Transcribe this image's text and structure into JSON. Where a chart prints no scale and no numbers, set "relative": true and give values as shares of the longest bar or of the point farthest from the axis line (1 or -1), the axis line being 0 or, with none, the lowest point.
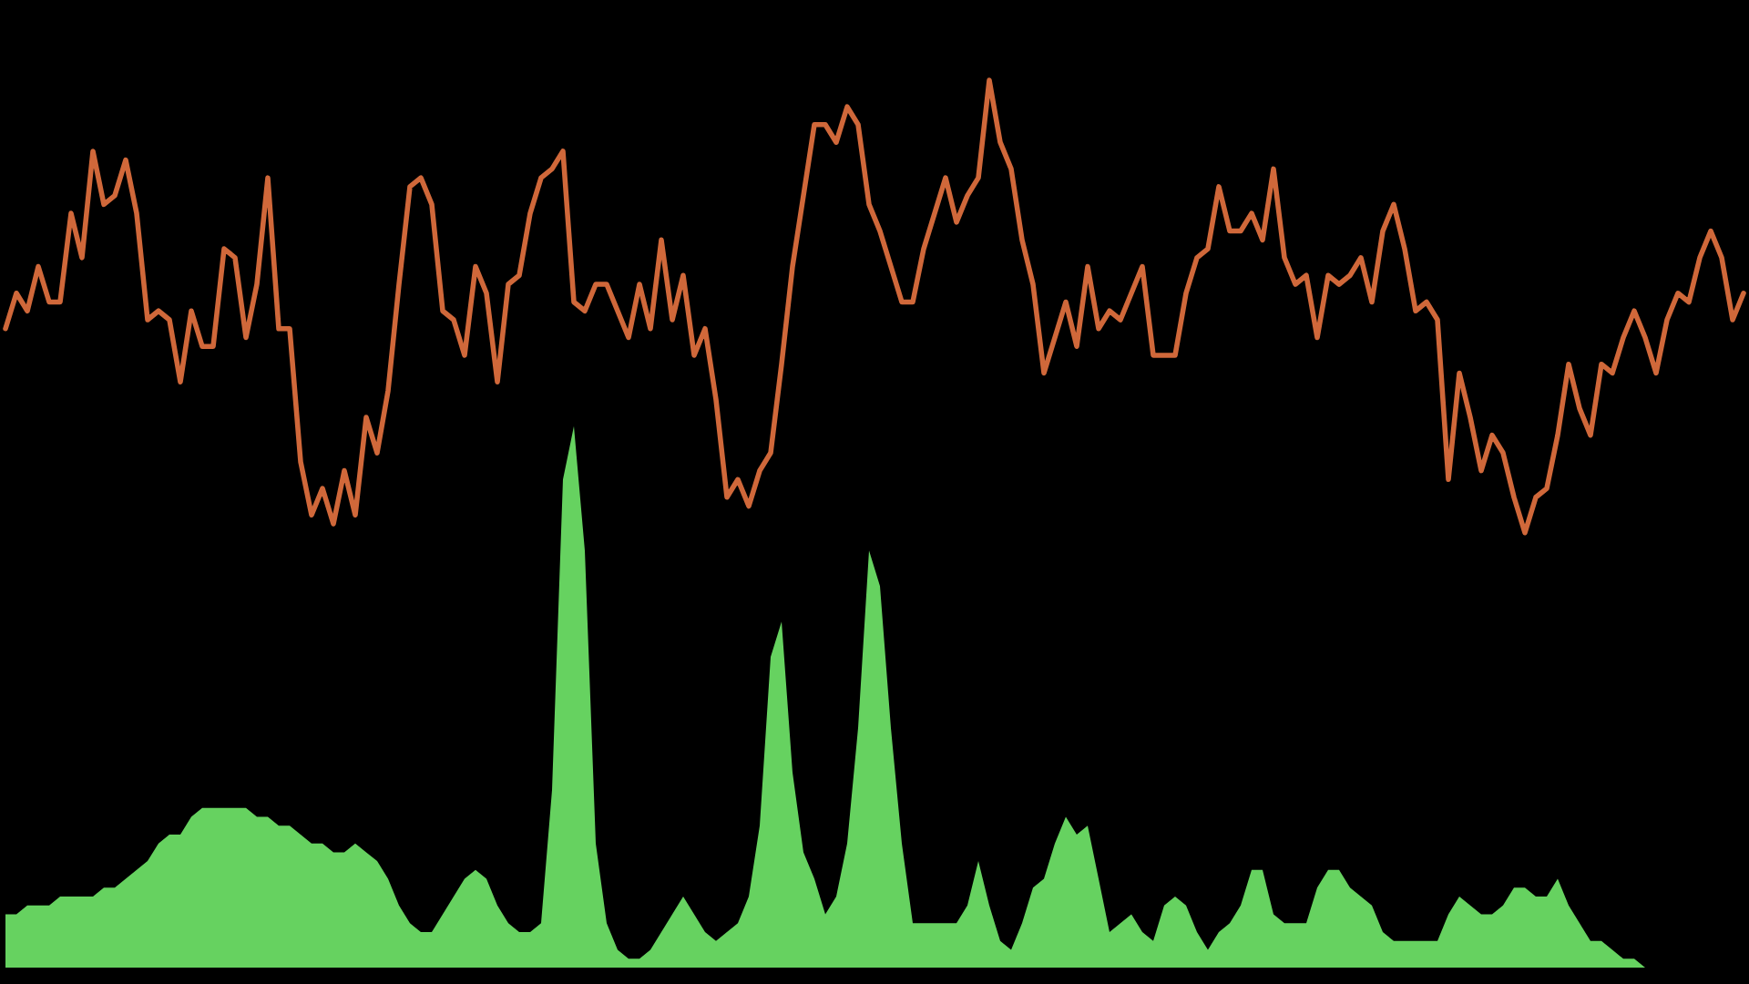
{
  "chart_data": {
    "type": "area",
    "relative": true,
    "categories": [
      null,
      null,
      null,
      null,
      null,
      null,
      null,
      null,
      null,
      null,
      null,
      null,
      null,
      null,
      null,
      null,
      null,
      null,
      null,
      null,
      null,
      null,
      null,
      null,
      null,
      null,
      null,
      null,
      null,
      null,
      null,
      null,
      null,
      null,
      null,
      null,
      null,
      null,
      null,
      null,
      null,
      null,
      null,
      null,
      null,
      null,
      null,
      null,
      null,
      null,
      null,
      null,
      null,
      null,
      null,
      null,
      null,
      null,
      null,
      null,
      null,
      null,
      null,
      null,
      null,
      null,
      null,
      null,
      null,
      null,
      null,
      null,
      null,
      null,
      null,
      null,
      null,
      null,
      null,
      null,
      null,
      null,
      null,
      null,
      null,
      null,
      null,
      null,
      null,
      null,
      null,
      null,
      null,
      null,
      null,
      null,
      null,
      null,
      null,
      null,
      null,
      null,
      null,
      null,
      null,
      null,
      null,
      null,
      null,
      null,
      null,
      null,
      null,
      null,
      null,
      null,
      null,
      null,
      null,
      null,
      null,
      null,
      null,
      null,
      null,
      null,
      null,
      null,
      null,
      null,
      null,
      null,
      null,
      null,
      null,
      null,
      null,
      null,
      null,
      null,
      null,
      null,
      null,
      null,
      null,
      null,
      null,
      null,
      null,
      null,
      null,
      null,
      null,
      null,
      null,
      null,
      null,
      null,
      null,
      null
    ],
    "series": [
      {
        "color": "#66d260",
        "values": [
          0.06,
          0.06,
          0.07,
          0.07,
          0.07,
          0.08,
          0.08,
          0.08,
          0.08,
          0.09,
          0.09,
          0.1,
          0.11,
          0.12,
          0.14,
          0.15,
          0.15,
          0.17,
          0.18,
          0.18,
          0.18,
          0.18,
          0.18,
          0.17,
          0.17,
          0.16,
          0.16,
          0.15,
          0.14,
          0.14,
          0.13,
          0.13,
          0.14,
          0.13,
          0.12,
          0.1,
          0.07,
          0.05,
          0.04,
          0.04,
          0.06,
          0.08,
          0.1,
          0.11,
          0.1,
          0.07,
          0.05,
          0.04,
          0.04,
          0.05,
          0.2,
          0.55,
          0.61,
          0.47,
          0.14,
          0.05,
          0.02,
          0.01,
          0.01,
          0.02,
          0.04,
          0.06,
          0.08,
          0.06,
          0.04,
          0.03,
          0.04,
          0.05,
          0.08,
          0.16,
          0.35,
          0.39,
          0.22,
          0.13,
          0.1,
          0.06,
          0.08,
          0.14,
          0.27,
          0.47,
          0.43,
          0.27,
          0.14,
          0.05,
          0.05,
          0.05,
          0.05,
          0.05,
          0.07,
          0.12,
          0.07,
          0.03,
          0.02,
          0.05,
          0.09,
          0.1,
          0.14,
          0.17,
          0.15,
          0.16,
          0.1,
          0.04,
          0.05,
          0.06,
          0.04,
          0.03,
          0.07,
          0.08,
          0.07,
          0.04,
          0.02,
          0.04,
          0.05,
          0.07,
          0.11,
          0.11,
          0.06,
          0.05,
          0.05,
          0.05,
          0.09,
          0.11,
          0.11,
          0.09,
          0.08,
          0.07,
          0.04,
          0.03,
          0.03,
          0.03,
          0.03,
          0.03,
          0.06,
          0.08,
          0.07,
          0.06,
          0.06,
          0.07,
          0.09,
          0.09,
          0.08,
          0.08,
          0.1,
          0.07,
          0.05,
          0.03,
          0.03,
          0.02,
          0.01,
          0.01,
          0,
          0,
          null,
          null,
          null,
          null,
          null,
          null,
          null,
          null
        ]
      },
      {
        "type": "line",
        "color": "#d0683a",
        "values": [
          0.72,
          0.76,
          0.74,
          0.79,
          0.75,
          0.75,
          0.85,
          0.8,
          0.92,
          0.86,
          0.87,
          0.91,
          0.85,
          0.73,
          0.74,
          0.73,
          0.66,
          0.74,
          0.7,
          0.7,
          0.81,
          0.8,
          0.71,
          0.77,
          0.89,
          0.72,
          0.72,
          0.57,
          0.51,
          0.54,
          0.5,
          0.56,
          0.51,
          0.62,
          0.58,
          0.65,
          0.77,
          0.88,
          0.89,
          0.86,
          0.74,
          0.73,
          0.69,
          0.79,
          0.76,
          0.66,
          0.77,
          0.78,
          0.85,
          0.89,
          0.9,
          0.92,
          0.75,
          0.74,
          0.77,
          0.77,
          0.74,
          0.71,
          0.77,
          0.72,
          0.82,
          0.73,
          0.78,
          0.69,
          0.72,
          0.64,
          0.53,
          0.55,
          0.52,
          0.56,
          0.58,
          0.68,
          0.79,
          0.87,
          0.95,
          0.95,
          0.93,
          0.97,
          0.95,
          0.86,
          0.83,
          0.79,
          0.75,
          0.75,
          0.81,
          0.85,
          0.89,
          0.84,
          0.87,
          0.89,
          1.0,
          0.93,
          0.9,
          0.82,
          0.77,
          0.67,
          0.71,
          0.75,
          0.7,
          0.79,
          0.72,
          0.74,
          0.73,
          0.76,
          0.79,
          0.69,
          0.69,
          0.69,
          0.76,
          0.8,
          0.81,
          0.88,
          0.83,
          0.83,
          0.85,
          0.82,
          0.9,
          0.8,
          0.77,
          0.78,
          0.71,
          0.78,
          0.77,
          0.78,
          0.8,
          0.75,
          0.83,
          0.86,
          0.81,
          0.74,
          0.75,
          0.73,
          0.55,
          0.67,
          0.62,
          0.56,
          0.6,
          0.58,
          0.53,
          0.49,
          0.53,
          0.54,
          0.6,
          0.68,
          0.63,
          0.6,
          0.68,
          0.67,
          0.71,
          0.74,
          0.71,
          0.67,
          0.73,
          0.76,
          0.75,
          0.8,
          0.83,
          0.8,
          0.73,
          0.76
        ]
      }
    ]
  }
}
